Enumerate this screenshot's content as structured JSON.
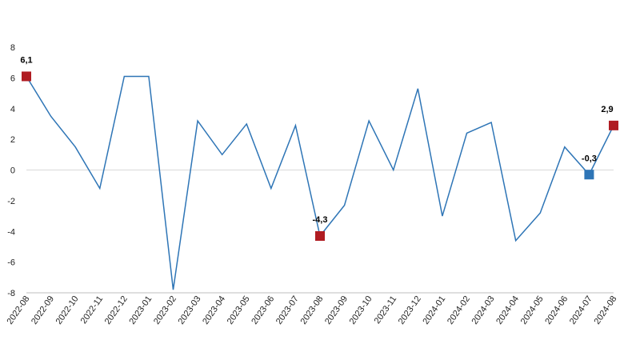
{
  "chart_data": {
    "type": "line",
    "title": "",
    "xlabel": "",
    "ylabel": "",
    "ylim": [
      -8,
      8
    ],
    "y_ticks": [
      8,
      6,
      4,
      2,
      0,
      -2,
      -4,
      -6,
      -8
    ],
    "y_tick_labels": [
      "8",
      "6",
      "4",
      "2",
      "0",
      "-2",
      "-4",
      "-6",
      "-8"
    ],
    "grid": false,
    "zero_line": true,
    "categories": [
      "2022-08",
      "2022-09",
      "2022-10",
      "2022-11",
      "2022-12",
      "2023-01",
      "2023-02",
      "2023-03",
      "2023-04",
      "2023-05",
      "2023-06",
      "2023-07",
      "2023-08",
      "2023-09",
      "2023-10",
      "2023-11",
      "2023-12",
      "2024-01",
      "2024-02",
      "2024-03",
      "2024-04",
      "2024-05",
      "2024-06",
      "2024-07",
      "2024-08"
    ],
    "series": [
      {
        "values": [
          6.1,
          3.5,
          1.5,
          -1.2,
          6.1,
          6.1,
          -7.8,
          3.2,
          1.0,
          3.0,
          -1.2,
          2.9,
          -4.3,
          -2.3,
          3.2,
          0.0,
          5.3,
          -3.0,
          2.4,
          3.1,
          -4.6,
          -2.8,
          1.5,
          -0.3,
          2.9
        ],
        "color": "#2e75b6"
      }
    ],
    "highlights": [
      {
        "index": 0,
        "label": "6,1",
        "color": "#b01c22",
        "label_pos": "above"
      },
      {
        "index": 12,
        "label": "-4,3",
        "color": "#b01c22",
        "label_pos": "above"
      },
      {
        "index": 23,
        "label": "-0,3",
        "color": "#2e75b6",
        "label_pos": "above"
      },
      {
        "index": 24,
        "label": "2,9",
        "color": "#b01c22",
        "label_pos": "above"
      }
    ],
    "colors": {
      "line": "#2e75b6",
      "highlight_red": "#b01c22",
      "highlight_blue": "#2e75b6",
      "zero_line": "#d9d9d9",
      "axis_line": "#bfbfbf"
    }
  }
}
